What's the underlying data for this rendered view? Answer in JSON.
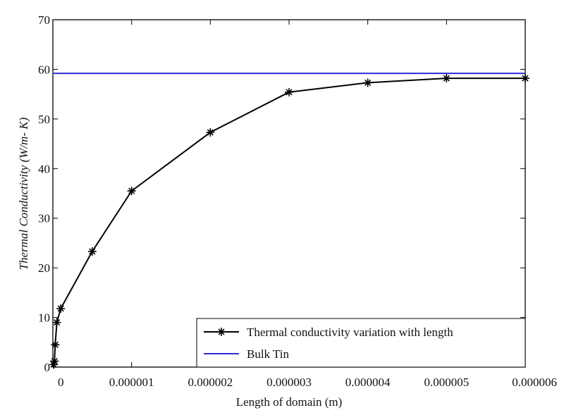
{
  "chart_data": {
    "type": "line",
    "xlabel": "Length of domain (m)",
    "ylabel": "Thermal Conductivity (W/m- K)",
    "xlim": [
      0,
      6e-06
    ],
    "ylim": [
      0,
      70
    ],
    "xticks": [
      0,
      1e-06,
      2e-06,
      3e-06,
      4e-06,
      5e-06,
      6e-06
    ],
    "xtick_labels": [
      "0",
      "0.000001",
      "0.000002",
      "0.000003",
      "0.000004",
      "0.000005",
      "0.000006"
    ],
    "yticks": [
      0,
      10,
      20,
      30,
      40,
      50,
      60,
      70
    ],
    "ytick_labels": [
      "0",
      "10",
      "20",
      "30",
      "40",
      "50",
      "60",
      "70"
    ],
    "grid": false,
    "legend_position": "bottom-right",
    "series": [
      {
        "name": "Thermal conductivity variation with length",
        "color": "#000000",
        "marker": "star",
        "x": [
          1e-08,
          2e-08,
          3e-08,
          5e-08,
          1e-07,
          5e-07,
          1e-06,
          2e-06,
          3e-06,
          4e-06,
          5e-06,
          6e-06
        ],
        "y": [
          0.5,
          1.2,
          4.5,
          9.0,
          11.8,
          23.3,
          35.5,
          47.3,
          55.4,
          57.3,
          58.2,
          58.2
        ]
      },
      {
        "name": "Bulk Tin",
        "color": "#2b2bd6",
        "marker": "none",
        "x": [
          0,
          6e-06
        ],
        "y": [
          59.2,
          59.2
        ]
      }
    ]
  }
}
